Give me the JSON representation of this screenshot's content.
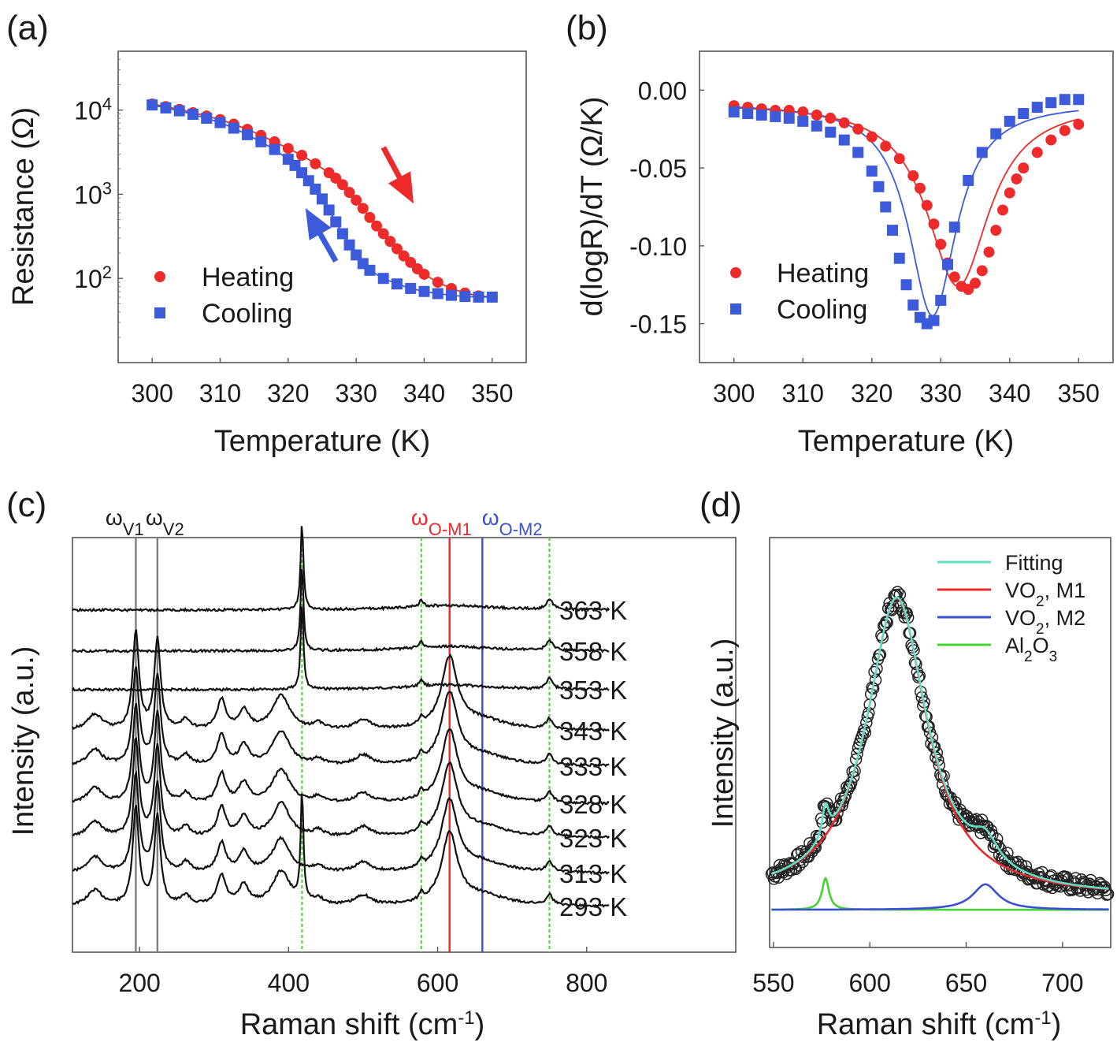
{
  "chart_data": [
    {
      "id": "a",
      "type": "scatter",
      "panel_label": "(a)",
      "xlabel": "Temperature (K)",
      "ylabel": "Resistance (Ω)",
      "xlim": [
        295,
        355
      ],
      "ylim": [
        10,
        50000
      ],
      "yscale": "log",
      "xticks": [
        300,
        310,
        320,
        330,
        340,
        350
      ],
      "yticks": [
        {
          "value": 100,
          "base": "10",
          "exp": "2"
        },
        {
          "value": 1000,
          "base": "10",
          "exp": "3"
        },
        {
          "value": 10000,
          "base": "10",
          "exp": "4"
        }
      ],
      "legend_position": "lower-left",
      "series": [
        {
          "name": "Heating",
          "color": "#ee2b2b",
          "marker": "circle",
          "x": [
            300,
            302,
            304,
            306,
            308,
            310,
            312,
            314,
            316,
            318,
            320,
            322,
            324,
            326,
            327,
            328,
            329,
            330,
            331,
            332,
            333,
            334,
            335,
            336,
            337,
            338,
            339,
            340,
            342,
            344,
            346,
            348,
            350
          ],
          "y": [
            11800,
            11000,
            10200,
            9300,
            8500,
            7700,
            6800,
            5900,
            5000,
            4200,
            3500,
            2900,
            2300,
            1800,
            1550,
            1300,
            1050,
            850,
            680,
            530,
            420,
            340,
            275,
            225,
            185,
            155,
            130,
            112,
            90,
            76,
            67,
            62,
            60
          ]
        },
        {
          "name": "Cooling",
          "color": "#3b5bdb",
          "marker": "square",
          "x": [
            300,
            302,
            304,
            306,
            308,
            310,
            312,
            314,
            316,
            318,
            320,
            321,
            322,
            323,
            324,
            325,
            326,
            327,
            328,
            329,
            330,
            331,
            332,
            334,
            336,
            338,
            340,
            342,
            344,
            346,
            348,
            350
          ],
          "y": [
            11500,
            10600,
            9800,
            8900,
            8000,
            7100,
            6100,
            5100,
            4200,
            3400,
            2600,
            2200,
            1800,
            1450,
            1150,
            880,
            650,
            470,
            340,
            250,
            190,
            150,
            125,
            100,
            86,
            76,
            70,
            66,
            63,
            61,
            60,
            60
          ]
        }
      ],
      "annotations": [
        {
          "type": "arrow",
          "color": "#ee2b2b",
          "from": [
            334,
            3600
          ],
          "to": [
            338,
            900
          ]
        },
        {
          "type": "arrow",
          "color": "#3b5bdb",
          "from": [
            327,
            160
          ],
          "to": [
            323,
            590
          ]
        }
      ]
    },
    {
      "id": "b",
      "type": "scatter",
      "panel_label": "(b)",
      "xlabel": "Temperature (K)",
      "ylabel": "d(logR)/dT (Ω/K)",
      "xlim": [
        295,
        355
      ],
      "ylim": [
        -0.175,
        0.025
      ],
      "xticks": [
        300,
        310,
        320,
        330,
        340,
        350
      ],
      "yticks": [
        "0.00",
        "-0.05",
        "-0.10",
        "-0.15"
      ],
      "ytick_values": [
        0,
        -0.05,
        -0.1,
        -0.15
      ],
      "legend_position": "lower-left",
      "series": [
        {
          "name": "Heating",
          "color": "#ee2b2b",
          "marker": "circle",
          "x": [
            300,
            302,
            304,
            306,
            308,
            310,
            312,
            314,
            316,
            318,
            320,
            322,
            324,
            326,
            327,
            328,
            329,
            330,
            331,
            332,
            333,
            334,
            335,
            336,
            337,
            338,
            339,
            340,
            341,
            342,
            344,
            346,
            348,
            350
          ],
          "y": [
            -0.01,
            -0.011,
            -0.012,
            -0.013,
            -0.013,
            -0.014,
            -0.016,
            -0.018,
            -0.021,
            -0.025,
            -0.03,
            -0.036,
            -0.044,
            -0.055,
            -0.063,
            -0.074,
            -0.086,
            -0.099,
            -0.111,
            -0.12,
            -0.126,
            -0.128,
            -0.124,
            -0.116,
            -0.104,
            -0.09,
            -0.077,
            -0.066,
            -0.057,
            -0.05,
            -0.04,
            -0.032,
            -0.026,
            -0.022
          ]
        },
        {
          "name": "Cooling",
          "color": "#3b5bdb",
          "marker": "square",
          "x": [
            300,
            302,
            304,
            306,
            308,
            310,
            312,
            314,
            316,
            318,
            320,
            321,
            322,
            323,
            324,
            325,
            326,
            327,
            328,
            329,
            330,
            331,
            332,
            334,
            336,
            338,
            340,
            342,
            344,
            346,
            348,
            350
          ],
          "y": [
            -0.014,
            -0.015,
            -0.016,
            -0.017,
            -0.018,
            -0.02,
            -0.023,
            -0.027,
            -0.032,
            -0.04,
            -0.052,
            -0.062,
            -0.075,
            -0.09,
            -0.108,
            -0.125,
            -0.138,
            -0.146,
            -0.15,
            -0.148,
            -0.135,
            -0.112,
            -0.088,
            -0.058,
            -0.04,
            -0.028,
            -0.02,
            -0.015,
            -0.011,
            -0.008,
            -0.006,
            -0.006
          ]
        }
      ]
    },
    {
      "id": "c",
      "type": "line",
      "panel_label": "(c)",
      "xlabel_base": "Raman shift (cm",
      "xlabel_sup": "-1",
      "xlabel_end": ")",
      "ylabel": "Intensity (a.u.)",
      "xlim": [
        110,
        1000
      ],
      "xticks": [
        200,
        400,
        600,
        800
      ],
      "temperatures": [
        "293 K",
        "313 K",
        "323 K",
        "328 K",
        "333 K",
        "343 K",
        "353 K",
        "358 K",
        "363 K"
      ],
      "reference_lines": [
        {
          "name": "ωV1",
          "x": 195,
          "color": "#7f7f7f",
          "style": "solid"
        },
        {
          "name": "ωV2",
          "x": 224,
          "color": "#7f7f7f",
          "style": "solid"
        },
        {
          "name": "ωO-M1",
          "x": 616,
          "color": "#e8282d",
          "style": "solid"
        },
        {
          "name": "ωO-M2",
          "x": 660,
          "color": "#3b4fd1",
          "style": "solid"
        },
        {
          "name": "Al2O3-418",
          "x": 418,
          "color": "#45d42f",
          "style": "dotted"
        },
        {
          "name": "Al2O3-578",
          "x": 578,
          "color": "#45d42f",
          "style": "dotted"
        },
        {
          "name": "Al2O3-750",
          "x": 750,
          "color": "#45d42f",
          "style": "dotted"
        }
      ],
      "labels": {
        "v1": "ω",
        "v1_sub": "V1",
        "v2": "ω",
        "v2_sub": "V2",
        "om1": "ω",
        "om1_sub": "O-M1",
        "om2": "ω",
        "om2_sub": "O-M2"
      }
    },
    {
      "id": "d",
      "type": "line",
      "panel_label": "(d)",
      "xlabel_base": "Raman shift (cm",
      "xlabel_sup": "-1",
      "xlabel_end": ")",
      "ylabel": "Intensity (a.u.)",
      "xlim": [
        548,
        725
      ],
      "xticks": [
        550,
        600,
        650,
        700
      ],
      "legend_position": "top-right",
      "series": [
        {
          "name": "Fitting",
          "color": "#5fe0c5"
        },
        {
          "name_base": "VO",
          "name_sub": "2",
          "name_end": ", M1",
          "color": "#e8282d"
        },
        {
          "name_base": "VO",
          "name_sub": "2",
          "name_end": ", M2",
          "color": "#3b4fd1"
        },
        {
          "name_base": "Al",
          "name_sub": "2",
          "name_mid": "O",
          "name_sub2": "3",
          "color": "#45d42f"
        }
      ],
      "peaks": {
        "m1": {
          "center": 614,
          "width": 19,
          "height": 1.0
        },
        "m2": {
          "center": 660,
          "width": 8,
          "height": 0.085
        },
        "al": {
          "center": 577,
          "width": 2.2,
          "height": 0.105
        },
        "baseline": 0.01
      }
    }
  ]
}
